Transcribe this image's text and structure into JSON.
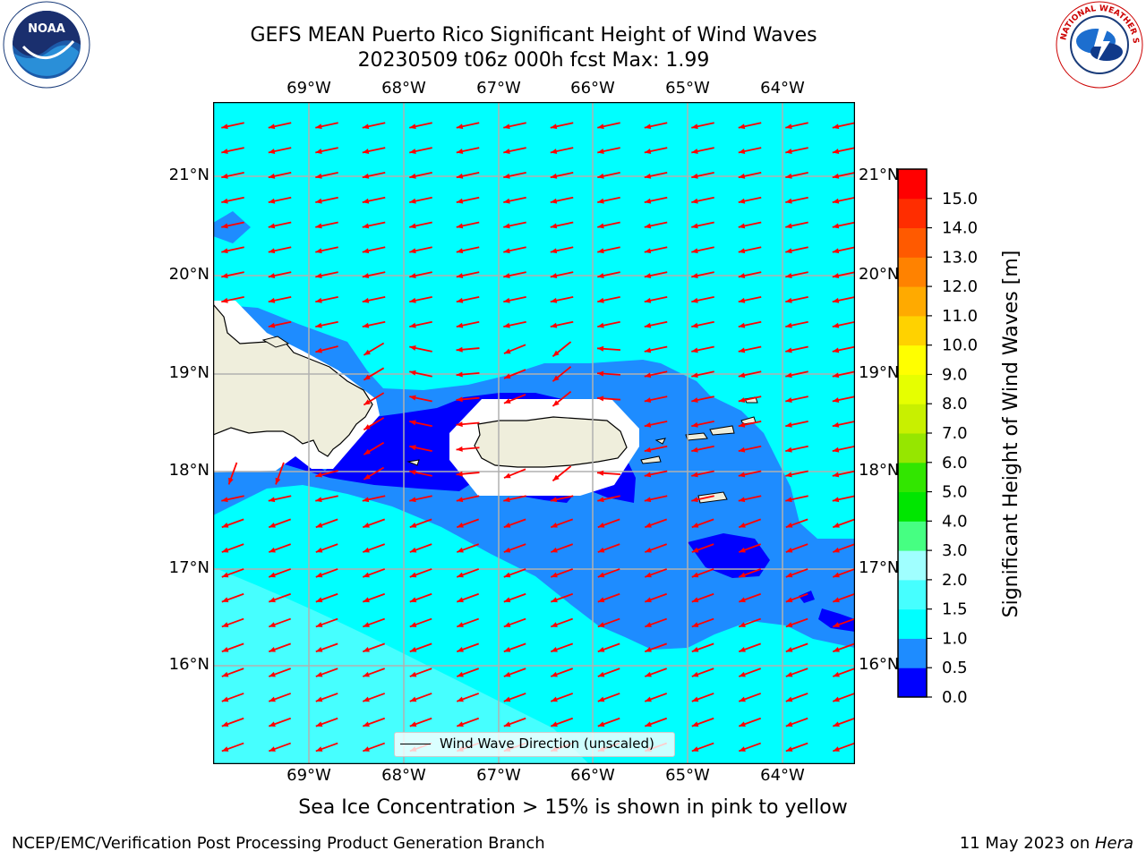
{
  "header": {
    "title_line1": "GEFS MEAN Puerto Rico Significant Height of Wind Waves",
    "title_line2": "20230509 t06z 000h fcst   Max: 1.99"
  },
  "logos": {
    "noara_text": "NOAA",
    "noaa_ring_text": "NATIONAL OCEANIC AND ATMOSPHERIC ADMINISTRATION · U.S. DEPARTMENT OF COMMERCE",
    "nws_ring_text": "NATIONAL WEATHER SERVICE"
  },
  "map": {
    "lon_labels": [
      "69°W",
      "68°W",
      "67°W",
      "66°W",
      "65°W",
      "64°W"
    ],
    "lat_labels": [
      "21°N",
      "20°N",
      "19°N",
      "18°N",
      "17°N",
      "16°N"
    ],
    "legend_text": "Wind Wave Direction (unscaled)",
    "arrow_color": "#ff0000"
  },
  "colorbar": {
    "label": "Significant Height of Wind Waves [m]",
    "ticks": [
      "0.0",
      "0.5",
      "1.0",
      "1.5",
      "2.0",
      "3.0",
      "4.0",
      "5.0",
      "6.0",
      "7.0",
      "8.0",
      "9.0",
      "10.0",
      "11.0",
      "12.0",
      "13.0",
      "14.0",
      "15.0"
    ],
    "colors": [
      "#0000ff",
      "#1e8cff",
      "#00ffff",
      "#46ffff",
      "#a0ffff",
      "#46ff82",
      "#00e600",
      "#32e600",
      "#96e600",
      "#c8f000",
      "#e6ff00",
      "#ffff00",
      "#ffd200",
      "#ffaa00",
      "#ff8200",
      "#ff5a00",
      "#ff2d00",
      "#ff0000"
    ]
  },
  "notes": {
    "ice": "Sea Ice Concentration > 15% is shown in pink to yellow",
    "footer_left": "NCEP/EMC/Verification Post Processing Product Generation Branch",
    "footer_right_prefix": "11 May 2023 on ",
    "footer_right_host": "Hera"
  }
}
